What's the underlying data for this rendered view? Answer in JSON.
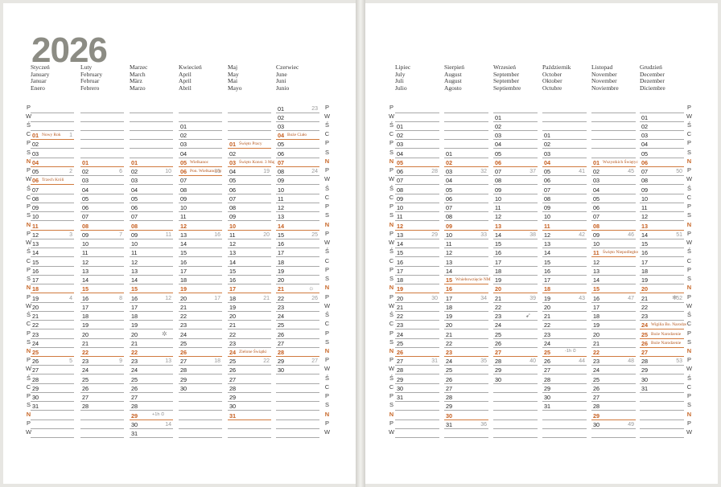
{
  "year": "2026",
  "day_letters": [
    "P",
    "W",
    "Ś",
    "C",
    "P",
    "S",
    "N"
  ],
  "left_months": [
    {
      "names": [
        "Styczeń",
        "January",
        "Januar",
        "Enero"
      ],
      "days": 31,
      "start": 3
    },
    {
      "names": [
        "Luty",
        "February",
        "Februar",
        "Febrero"
      ],
      "days": 28,
      "start": 6
    },
    {
      "names": [
        "Marzec",
        "March",
        "März",
        "Marzo"
      ],
      "days": 31,
      "start": 6
    },
    {
      "names": [
        "Kwiecień",
        "April",
        "April",
        "Abril"
      ],
      "days": 30,
      "start": 2
    },
    {
      "names": [
        "Maj",
        "May",
        "Mai",
        "Mayo"
      ],
      "days": 31,
      "start": 4
    },
    {
      "names": [
        "Czerwiec",
        "June",
        "Juni",
        "Junio"
      ],
      "days": 30,
      "start": 0
    }
  ],
  "right_months": [
    {
      "names": [
        "Lipiec",
        "July",
        "Juli",
        "Julio"
      ],
      "days": 31,
      "start": 2
    },
    {
      "names": [
        "Sierpień",
        "August",
        "August",
        "Agosto"
      ],
      "days": 31,
      "start": 5
    },
    {
      "names": [
        "Wrzesień",
        "September",
        "September",
        "Septiembre"
      ],
      "days": 30,
      "start": 1
    },
    {
      "names": [
        "Październik",
        "October",
        "Oktober",
        "Octubre"
      ],
      "days": 31,
      "start": 3
    },
    {
      "names": [
        "Listopad",
        "November",
        "November",
        "Noviembre"
      ],
      "days": 30,
      "start": 6
    },
    {
      "names": [
        "Grudzień",
        "December",
        "Dezember",
        "Diciembre"
      ],
      "days": 31,
      "start": 1
    }
  ],
  "week_numbers": {
    "0": {
      "1": 1,
      "5": 2,
      "12": 3,
      "19": 4,
      "26": 5
    },
    "1": {
      "2": 6,
      "9": 7,
      "16": 8,
      "23": 9
    },
    "2": {
      "2": 10,
      "9": 11,
      "16": 12,
      "23": 13,
      "30": 14
    },
    "3": {
      "6": 15,
      "13": 16,
      "20": 17,
      "27": 18
    },
    "4": {
      "4": 19,
      "11": 20,
      "18": 21,
      "25": 22
    },
    "5": {
      "1": 23,
      "8": 24,
      "15": 25,
      "22": 26,
      "29": 27
    },
    "6": {
      "6": 28,
      "13": 29,
      "20": 30,
      "27": 31
    },
    "7": {
      "3": 32,
      "10": 33,
      "17": 34,
      "24": 35,
      "31": 36
    },
    "8": {
      "7": 37,
      "14": 38,
      "21": 39,
      "28": 40
    },
    "9": {
      "5": 41,
      "12": 42,
      "19": 43,
      "26": 44
    },
    "10": {
      "2": 45,
      "9": 46,
      "16": 47,
      "23": 48,
      "30": 49
    },
    "11": {
      "7": 50,
      "14": 51,
      "21": 52,
      "28": 53
    }
  },
  "holidays": {
    "0": {
      "1": "Nowy Rok",
      "6": "Trzech Króli"
    },
    "3": {
      "5": "Wielkanoc",
      "6": "Pon. Wielkanocny"
    },
    "4": {
      "1": "Święto Pracy",
      "3": "Święto Konst. 3 Maja",
      "24": "Zielone Świątki"
    },
    "5": {
      "4": "Boże Ciało"
    },
    "7": {
      "15": "Wniebowzięcie NMP"
    },
    "10": {
      "1": "Wszystkich Świętych",
      "11": "Święto Niepodległości"
    },
    "11": {
      "24": "Wigilia Bo. Narodzenia",
      "25": "Boże Narodzenie",
      "26": "Boże Narodzenie"
    }
  },
  "markers": {
    "2": {
      "20": "✲",
      "29": "+1h ⏲"
    },
    "5": {
      "21": "☼"
    },
    "8": {
      "23": "➹"
    },
    "9": {
      "25": "-1h ⏲"
    },
    "11": {
      "21": "❄"
    }
  }
}
